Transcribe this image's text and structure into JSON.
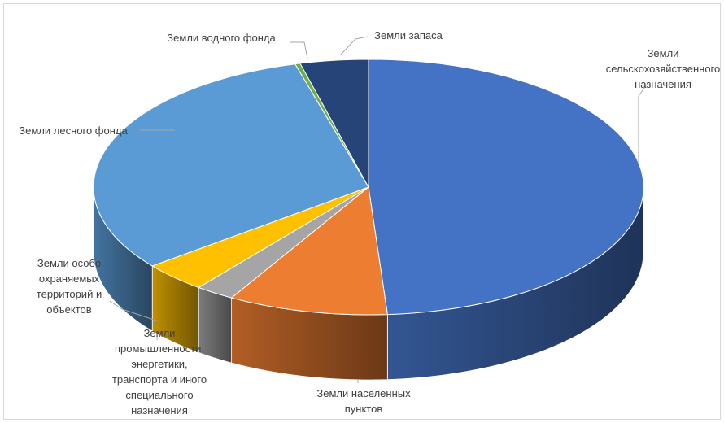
{
  "chart_data": {
    "type": "pie",
    "style": "3d",
    "title": "",
    "legend": "none",
    "slices": [
      {
        "key": "agri",
        "name": "Земли сельскохозяйственного назначения",
        "value": 48.9,
        "color": "#4472c4",
        "label_lines": [
          "Земли",
          "сельскохозяйственного",
          "назначения"
        ]
      },
      {
        "key": "settle",
        "name": "Земли населенных пунктов",
        "value": 9.4,
        "color": "#ed7d31",
        "label_lines": [
          "Земли населенных",
          "пунктов"
        ]
      },
      {
        "key": "industry",
        "name": "Земли промышленности, энергетики, транспорта и иного специального назначения",
        "value": 2.3,
        "color": "#a5a5a5",
        "label_lines": [
          "Земли",
          "промышленности,",
          "энергетики,",
          "транспорта и иного",
          "специального",
          "назначения"
        ]
      },
      {
        "key": "protect",
        "name": "Земли особо охраняемых территорий и объектов",
        "value": 3.8,
        "color": "#ffc000",
        "label_lines": [
          "Земли особо",
          "охраняемых",
          "территорий и",
          "объектов"
        ]
      },
      {
        "key": "forest",
        "name": "Земли лесного фонда",
        "value": 31.3,
        "color": "#5b9bd5",
        "label_lines": [
          "Земли лесного фонда"
        ]
      },
      {
        "key": "water",
        "name": "Земли водного фонда",
        "value": 0.3,
        "color": "#70ad47",
        "label_lines": [
          "Земли водного фонда"
        ]
      },
      {
        "key": "reserve",
        "name": "Земли запаса",
        "value": 4.0,
        "color": "#264478",
        "label_lines": [
          "Земли запаса"
        ]
      }
    ]
  }
}
